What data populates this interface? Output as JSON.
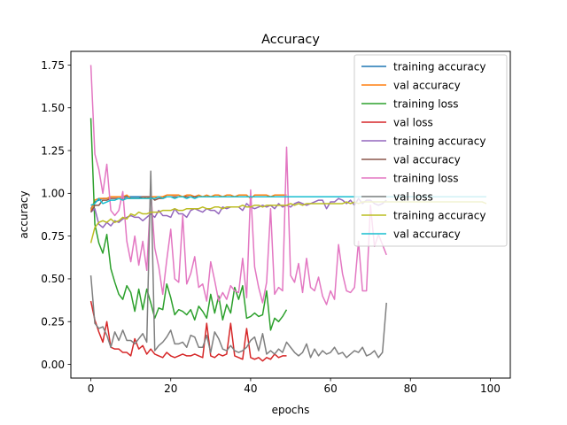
{
  "chart_data": {
    "type": "line",
    "title": "Accuracy",
    "xlabel": "epochs",
    "ylabel": "accuracy",
    "xlim": [
      -5,
      105
    ],
    "ylim": [
      -0.08,
      1.83
    ],
    "x_ticks": [
      0,
      20,
      40,
      60,
      80,
      100
    ],
    "x_tick_labels": [
      "0",
      "20",
      "40",
      "60",
      "80",
      "100"
    ],
    "y_ticks": [
      0.0,
      0.25,
      0.5,
      0.75,
      1.0,
      1.25,
      1.5,
      1.75
    ],
    "y_tick_labels": [
      "0.00",
      "0.25",
      "0.50",
      "0.75",
      "1.00",
      "1.25",
      "1.50",
      "1.75"
    ],
    "grid": false,
    "legend_position": "top-right",
    "series": [
      {
        "name": "training accuracy",
        "color": "#1f77b4",
        "values": [
          0.91,
          0.95,
          0.96,
          0.97,
          0.97,
          0.98,
          0.98,
          0.98,
          0.98,
          0.98,
          0.98,
          0.98,
          0.98,
          0.98,
          0.98,
          0.98,
          0.98,
          0.98,
          0.98,
          0.98,
          0.98,
          0.98,
          0.98,
          0.98,
          0.98,
          0.98,
          0.98,
          0.98,
          0.98,
          0.98,
          0.98,
          0.98,
          0.98,
          0.98,
          0.98,
          0.98,
          0.98,
          0.98,
          0.98,
          0.98,
          0.98,
          0.98,
          0.98,
          0.98,
          0.98,
          0.98,
          0.98,
          0.98,
          0.98,
          0.98
        ]
      },
      {
        "name": "val accuracy",
        "color": "#ff7f0e",
        "values": [
          0.9,
          0.96,
          0.97,
          0.97,
          0.97,
          0.98,
          0.98,
          0.98,
          0.98,
          0.99,
          0.97,
          0.97,
          0.97,
          0.98,
          0.97,
          0.98,
          0.98,
          0.98,
          0.98,
          0.99,
          0.99,
          0.99,
          0.99,
          0.98,
          0.99,
          0.99,
          0.98,
          0.99,
          0.98,
          0.99,
          0.98,
          0.99,
          0.99,
          0.98,
          0.99,
          0.99,
          0.98,
          0.99,
          0.99,
          0.99,
          0.97,
          0.99,
          0.99,
          0.99,
          0.99,
          0.98,
          0.99,
          0.99,
          0.99,
          0.99
        ]
      },
      {
        "name": "training loss",
        "color": "#2ca02c",
        "values": [
          1.44,
          0.82,
          0.71,
          0.65,
          0.76,
          0.56,
          0.48,
          0.41,
          0.38,
          0.46,
          0.42,
          0.31,
          0.44,
          0.32,
          0.44,
          0.36,
          0.27,
          0.33,
          0.32,
          0.47,
          0.39,
          0.29,
          0.32,
          0.31,
          0.29,
          0.32,
          0.26,
          0.34,
          0.31,
          0.27,
          0.41,
          0.3,
          0.4,
          0.26,
          0.35,
          0.3,
          0.45,
          0.38,
          0.46,
          0.27,
          0.28,
          0.3,
          0.28,
          0.29,
          0.43,
          0.2,
          0.27,
          0.25,
          0.28,
          0.32
        ]
      },
      {
        "name": "val loss",
        "color": "#d62728",
        "values": [
          0.37,
          0.26,
          0.19,
          0.13,
          0.25,
          0.1,
          0.09,
          0.09,
          0.07,
          0.07,
          0.05,
          0.15,
          0.09,
          0.11,
          0.06,
          0.09,
          0.06,
          0.05,
          0.04,
          0.07,
          0.05,
          0.04,
          0.05,
          0.06,
          0.05,
          0.05,
          0.06,
          0.05,
          0.04,
          0.24,
          0.05,
          0.04,
          0.06,
          0.05,
          0.06,
          0.24,
          0.05,
          0.04,
          0.03,
          0.21,
          0.04,
          0.03,
          0.04,
          0.02,
          0.04,
          0.03,
          0.06,
          0.04,
          0.05,
          0.05
        ]
      },
      {
        "name": "training accuracy",
        "color": "#9467bd",
        "values": [
          0.89,
          0.91,
          0.82,
          0.8,
          0.83,
          0.81,
          0.84,
          0.83,
          0.85,
          0.86,
          0.87,
          0.86,
          0.86,
          0.84,
          0.86,
          0.88,
          0.86,
          0.9,
          0.87,
          0.87,
          0.86,
          0.91,
          0.88,
          0.88,
          0.86,
          0.9,
          0.91,
          0.9,
          0.89,
          0.91,
          0.9,
          0.9,
          0.88,
          0.92,
          0.91,
          0.92,
          0.92,
          0.92,
          0.9,
          0.94,
          0.92,
          0.91,
          0.92,
          0.93,
          0.92,
          0.93,
          0.91,
          0.94,
          0.92,
          0.93,
          0.92,
          0.94,
          0.95,
          0.94,
          0.93,
          0.94,
          0.95,
          0.96,
          0.96,
          0.91,
          0.95,
          0.95,
          0.97,
          0.96,
          0.94,
          0.96,
          0.93,
          0.97,
          0.94,
          0.96,
          0.96,
          0.94,
          0.93,
          0.94,
          0.96
        ]
      },
      {
        "name": "val accuracy",
        "color": "#8c564b",
        "values": [
          0.89,
          0.93,
          0.93,
          0.96,
          0.96,
          0.97,
          0.97,
          0.97,
          0.97,
          0.97,
          0.97,
          0.97,
          0.97,
          0.98,
          0.98,
          0.98,
          0.96,
          0.97,
          0.97,
          0.98,
          0.98,
          0.98,
          0.98,
          0.98,
          0.98,
          0.98,
          0.98,
          0.98,
          0.98,
          0.98,
          0.98,
          0.98,
          0.98,
          0.98,
          0.98,
          0.98,
          0.98,
          0.98,
          0.98,
          0.98,
          0.98,
          0.98,
          0.98,
          0.98,
          0.98,
          0.98,
          0.98,
          0.98,
          0.98,
          0.98,
          0.98,
          0.98,
          0.98,
          0.98,
          0.98,
          0.98,
          0.98,
          0.98,
          0.98,
          0.98,
          0.98,
          0.98,
          0.98,
          0.98,
          0.98,
          0.98,
          0.98,
          0.98,
          0.98,
          0.98,
          0.98,
          0.98,
          0.98,
          0.98,
          0.98
        ]
      },
      {
        "name": "training loss",
        "color": "#e377c2",
        "values": [
          1.75,
          1.23,
          1.14,
          1.0,
          1.17,
          0.9,
          0.87,
          0.9,
          1.01,
          0.72,
          0.6,
          0.75,
          0.58,
          0.72,
          0.55,
          1.01,
          0.68,
          0.57,
          0.41,
          0.61,
          0.79,
          0.5,
          0.48,
          0.87,
          0.47,
          0.53,
          0.63,
          0.45,
          0.47,
          0.37,
          0.6,
          0.49,
          0.37,
          0.42,
          0.38,
          0.46,
          0.43,
          0.42,
          0.62,
          0.39,
          1.02,
          0.57,
          0.45,
          0.36,
          0.48,
          0.91,
          0.41,
          0.45,
          0.43,
          1.27,
          0.52,
          0.48,
          0.59,
          0.42,
          0.62,
          0.45,
          0.43,
          0.51,
          0.4,
          0.35,
          0.43,
          0.38,
          0.7,
          0.53,
          0.43,
          0.42,
          0.45,
          0.72,
          0.43,
          0.43,
          0.93,
          0.69,
          0.76,
          0.7,
          0.64
        ]
      },
      {
        "name": "val loss",
        "color": "#7f7f7f",
        "values": [
          0.52,
          0.24,
          0.21,
          0.22,
          0.17,
          0.1,
          0.19,
          0.14,
          0.2,
          0.14,
          0.14,
          0.12,
          0.15,
          0.18,
          0.13,
          1.13,
          0.08,
          0.11,
          0.13,
          0.16,
          0.2,
          0.12,
          0.12,
          0.13,
          0.1,
          0.17,
          0.16,
          0.1,
          0.1,
          0.17,
          0.07,
          0.19,
          0.15,
          0.09,
          0.08,
          0.11,
          0.08,
          0.07,
          0.08,
          0.1,
          0.14,
          0.16,
          0.08,
          0.18,
          0.06,
          0.08,
          0.06,
          0.09,
          0.07,
          0.13,
          0.1,
          0.07,
          0.05,
          0.07,
          0.12,
          0.04,
          0.09,
          0.05,
          0.08,
          0.06,
          0.07,
          0.1,
          0.06,
          0.07,
          0.04,
          0.06,
          0.08,
          0.07,
          0.1,
          0.05,
          0.06,
          0.08,
          0.04,
          0.07,
          0.36
        ]
      },
      {
        "name": "training accuracy",
        "color": "#bcbd22",
        "values": [
          0.71,
          0.8,
          0.83,
          0.84,
          0.83,
          0.85,
          0.83,
          0.84,
          0.86,
          0.85,
          0.88,
          0.87,
          0.89,
          0.88,
          0.88,
          0.89,
          0.89,
          0.89,
          0.9,
          0.9,
          0.9,
          0.91,
          0.9,
          0.9,
          0.91,
          0.91,
          0.91,
          0.91,
          0.92,
          0.91,
          0.91,
          0.92,
          0.92,
          0.91,
          0.92,
          0.92,
          0.92,
          0.92,
          0.93,
          0.92,
          0.92,
          0.93,
          0.93,
          0.92,
          0.93,
          0.93,
          0.93,
          0.93,
          0.93,
          0.93,
          0.94,
          0.93,
          0.94,
          0.93,
          0.94,
          0.94,
          0.94,
          0.94,
          0.94,
          0.94,
          0.94,
          0.94,
          0.94,
          0.94,
          0.95,
          0.94,
          0.95,
          0.94,
          0.95,
          0.95,
          0.95,
          0.95,
          0.95,
          0.95,
          0.95,
          0.95,
          0.95,
          0.95,
          0.95,
          0.95,
          0.95,
          0.95,
          0.95,
          0.95,
          0.95,
          0.95,
          0.95,
          0.95,
          0.95,
          0.95,
          0.95,
          0.95,
          0.95,
          0.95,
          0.95,
          0.95,
          0.95,
          0.95,
          0.95,
          0.94
        ]
      },
      {
        "name": "val accuracy",
        "color": "#17becf",
        "values": [
          0.93,
          0.94,
          0.97,
          0.94,
          0.95,
          0.96,
          0.96,
          0.97,
          0.96,
          0.97,
          0.97,
          0.97,
          0.97,
          0.97,
          0.97,
          0.97,
          0.97,
          0.98,
          0.97,
          0.98,
          0.98,
          0.97,
          0.98,
          0.98,
          0.97,
          0.98,
          0.97,
          0.98,
          0.98,
          0.98,
          0.98,
          0.98,
          0.98,
          0.98,
          0.98,
          0.98,
          0.98,
          0.98,
          0.98,
          0.98,
          0.98,
          0.98,
          0.98,
          0.98,
          0.98,
          0.98,
          0.98,
          0.98,
          0.98,
          0.98,
          0.98,
          0.98,
          0.98,
          0.98,
          0.98,
          0.98,
          0.98,
          0.98,
          0.98,
          0.98,
          0.98,
          0.98,
          0.98,
          0.98,
          0.98,
          0.98,
          0.98,
          0.98,
          0.98,
          0.98,
          0.98,
          0.98,
          0.98,
          0.98,
          0.98,
          0.98,
          0.98,
          0.98,
          0.98,
          0.98,
          0.98,
          0.98,
          0.98,
          0.98,
          0.98,
          0.98,
          0.98,
          0.98,
          0.98,
          0.98,
          0.98,
          0.98,
          0.98,
          0.98,
          0.98,
          0.98,
          0.98,
          0.98,
          0.98,
          0.98
        ]
      }
    ]
  }
}
